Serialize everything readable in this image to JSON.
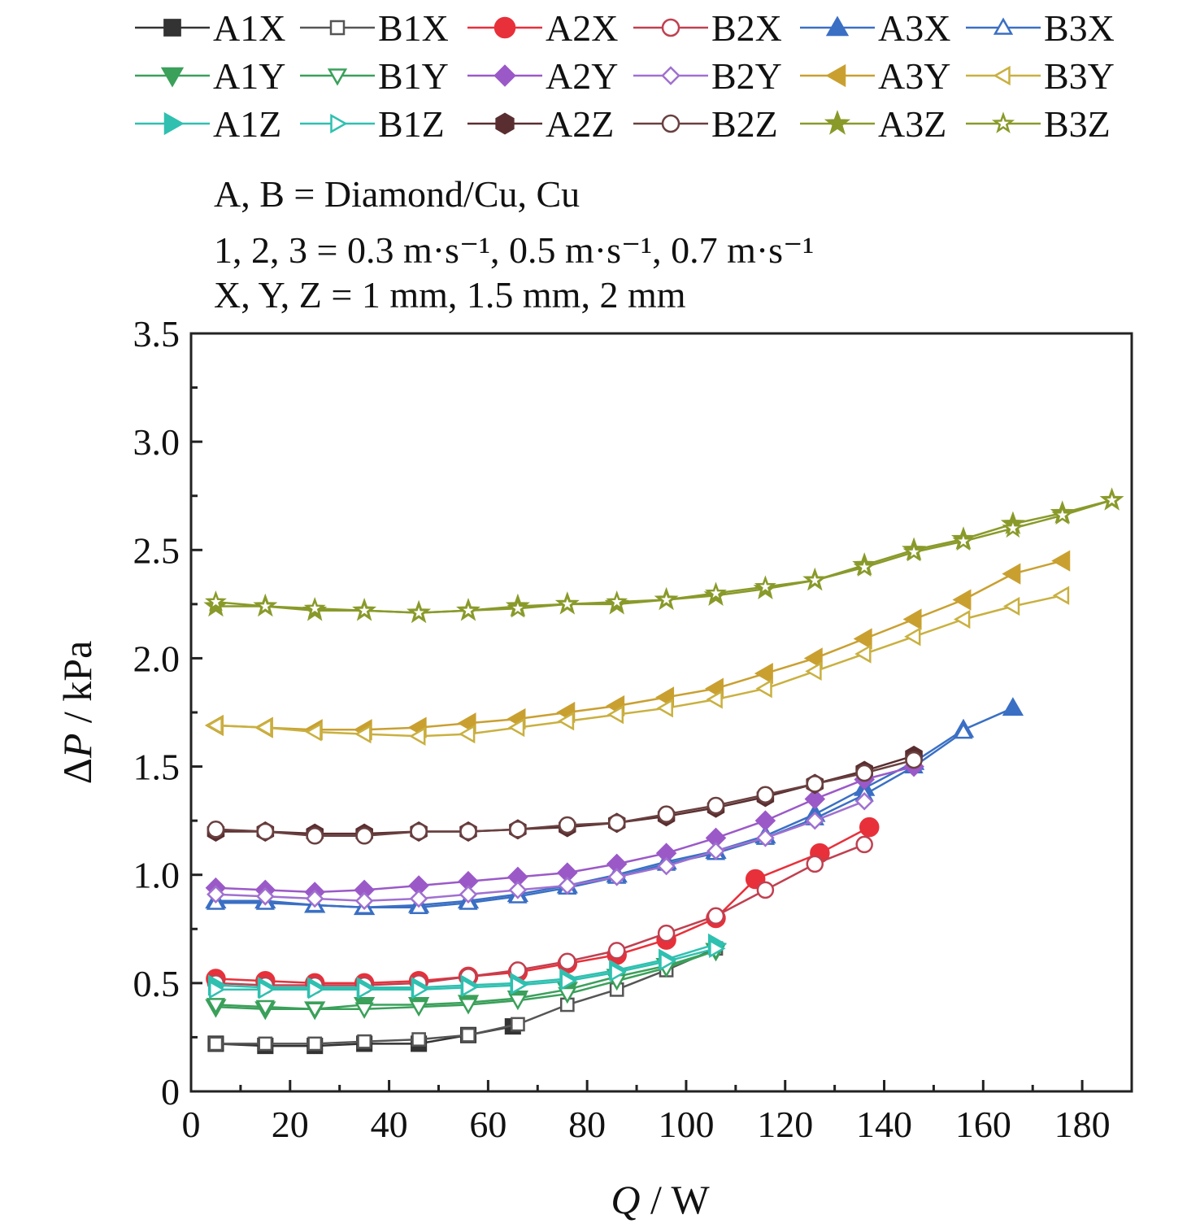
{
  "chart_data": {
    "type": "line",
    "xlabel": "Q / W",
    "ylabel": "ΔP / kPa",
    "xlim": [
      0,
      190
    ],
    "ylim": [
      0,
      3.5
    ],
    "xticks": [
      0,
      20,
      40,
      60,
      80,
      100,
      120,
      140,
      160,
      180
    ],
    "yticks": [
      "0",
      "0.5",
      "1.0",
      "1.5",
      "2.0",
      "2.5",
      "3.0",
      "3.5"
    ],
    "notes": [
      {
        "text": "A, B = Diamond/Cu, Cu"
      },
      {
        "text": "1, 2, 3 = 0.3 m·s⁻¹, 0.5 m·s⁻¹, 0.7 m·s⁻¹"
      },
      {
        "text": "X, Y, Z = 1 mm, 1.5 mm, 2 mm"
      }
    ],
    "legend_position": "top",
    "series": [
      {
        "name": "A1X",
        "color": "#333333",
        "marker": "square",
        "filled": true,
        "x": [
          5,
          15,
          25,
          35,
          46,
          56,
          65
        ],
        "y": [
          0.22,
          0.21,
          0.21,
          0.22,
          0.22,
          0.26,
          0.3
        ]
      },
      {
        "name": "B1X",
        "color": "#555555",
        "marker": "square",
        "filled": false,
        "x": [
          5,
          15,
          25,
          35,
          46,
          56,
          66,
          76,
          86,
          96,
          106
        ],
        "y": [
          0.22,
          0.22,
          0.22,
          0.23,
          0.24,
          0.26,
          0.31,
          0.4,
          0.47,
          0.56,
          0.66
        ]
      },
      {
        "name": "A2X",
        "color": "#e8303a",
        "marker": "circle",
        "filled": true,
        "x": [
          5,
          15,
          25,
          35,
          46,
          56,
          66,
          76,
          86,
          96,
          106,
          114,
          127,
          137
        ],
        "y": [
          0.52,
          0.51,
          0.5,
          0.5,
          0.51,
          0.53,
          0.55,
          0.59,
          0.63,
          0.7,
          0.8,
          0.98,
          1.1,
          1.22
        ]
      },
      {
        "name": "B2X",
        "color": "#c04050",
        "marker": "circle",
        "filled": false,
        "x": [
          5,
          15,
          25,
          35,
          46,
          56,
          66,
          76,
          86,
          96,
          106,
          116,
          126,
          136
        ],
        "y": [
          0.5,
          0.49,
          0.49,
          0.49,
          0.5,
          0.53,
          0.56,
          0.6,
          0.65,
          0.73,
          0.81,
          0.93,
          1.05,
          1.14
        ]
      },
      {
        "name": "A3X",
        "color": "#3a6fc4",
        "marker": "triangle-up",
        "filled": true,
        "x": [
          5,
          15,
          25,
          35,
          46,
          56,
          66,
          76,
          86,
          96,
          106,
          116,
          126,
          136,
          146,
          156,
          166
        ],
        "y": [
          0.88,
          0.88,
          0.86,
          0.85,
          0.86,
          0.88,
          0.91,
          0.95,
          1.0,
          1.06,
          1.11,
          1.18,
          1.28,
          1.4,
          1.52,
          1.67,
          1.77
        ]
      },
      {
        "name": "B3X",
        "color": "#3a6fc4",
        "marker": "triangle-up",
        "filled": false,
        "x": [
          5,
          15,
          25,
          35,
          46,
          56,
          66,
          76,
          86,
          96,
          106,
          116,
          126,
          136,
          146,
          156
        ],
        "y": [
          0.87,
          0.87,
          0.86,
          0.85,
          0.85,
          0.87,
          0.9,
          0.94,
          0.99,
          1.05,
          1.1,
          1.17,
          1.26,
          1.37,
          1.5,
          1.66
        ]
      },
      {
        "name": "A1Y",
        "color": "#3aa05a",
        "marker": "triangle-down",
        "filled": true,
        "x": [
          5,
          15,
          25,
          35,
          46,
          56,
          66,
          76,
          86,
          96,
          106
        ],
        "y": [
          0.39,
          0.38,
          0.38,
          0.4,
          0.4,
          0.41,
          0.43,
          0.47,
          0.53,
          0.58,
          0.65
        ]
      },
      {
        "name": "B1Y",
        "color": "#3aa05a",
        "marker": "triangle-down",
        "filled": false,
        "x": [
          5,
          15,
          25,
          35,
          46,
          56,
          66,
          76,
          86,
          96,
          106
        ],
        "y": [
          0.4,
          0.39,
          0.38,
          0.38,
          0.39,
          0.4,
          0.42,
          0.45,
          0.51,
          0.57,
          0.65
        ]
      },
      {
        "name": "A2Y",
        "color": "#9b59c8",
        "marker": "diamond",
        "filled": true,
        "x": [
          5,
          15,
          25,
          35,
          46,
          56,
          66,
          76,
          86,
          96,
          106,
          116,
          126,
          136,
          146
        ],
        "y": [
          0.94,
          0.93,
          0.92,
          0.93,
          0.95,
          0.97,
          0.99,
          1.01,
          1.05,
          1.1,
          1.17,
          1.25,
          1.35,
          1.44,
          1.5
        ]
      },
      {
        "name": "B2Y",
        "color": "#a070d0",
        "marker": "diamond",
        "filled": false,
        "x": [
          5,
          15,
          25,
          35,
          46,
          56,
          66,
          76,
          86,
          96,
          106,
          116,
          126,
          136
        ],
        "y": [
          0.91,
          0.9,
          0.89,
          0.88,
          0.89,
          0.91,
          0.93,
          0.95,
          0.99,
          1.04,
          1.11,
          1.17,
          1.25,
          1.34
        ]
      },
      {
        "name": "A3Y",
        "color": "#c9a030",
        "marker": "triangle-left",
        "filled": true,
        "x": [
          5,
          15,
          25,
          35,
          46,
          56,
          66,
          76,
          86,
          96,
          106,
          116,
          126,
          136,
          146,
          156,
          166,
          176
        ],
        "y": [
          1.69,
          1.68,
          1.67,
          1.67,
          1.68,
          1.7,
          1.72,
          1.75,
          1.78,
          1.82,
          1.86,
          1.93,
          2.0,
          2.09,
          2.18,
          2.27,
          2.39,
          2.45
        ]
      },
      {
        "name": "B3Y",
        "color": "#c9b040",
        "marker": "triangle-left",
        "filled": false,
        "x": [
          5,
          15,
          25,
          35,
          46,
          56,
          66,
          76,
          86,
          96,
          106,
          116,
          126,
          136,
          146,
          156,
          166,
          176
        ],
        "y": [
          1.69,
          1.68,
          1.66,
          1.65,
          1.64,
          1.65,
          1.68,
          1.71,
          1.74,
          1.77,
          1.81,
          1.86,
          1.94,
          2.02,
          2.1,
          2.18,
          2.24,
          2.29
        ]
      },
      {
        "name": "A1Z",
        "color": "#2fc0b0",
        "marker": "triangle-right",
        "filled": true,
        "x": [
          5,
          15,
          25,
          35,
          46,
          56,
          66,
          76,
          86,
          96,
          106
        ],
        "y": [
          0.49,
          0.48,
          0.48,
          0.48,
          0.48,
          0.49,
          0.5,
          0.52,
          0.56,
          0.61,
          0.68
        ]
      },
      {
        "name": "B1Z",
        "color": "#2fc0b0",
        "marker": "triangle-right",
        "filled": false,
        "x": [
          5,
          15,
          25,
          35,
          46,
          56,
          66,
          76,
          86,
          96,
          106
        ],
        "y": [
          0.47,
          0.47,
          0.47,
          0.47,
          0.47,
          0.48,
          0.49,
          0.51,
          0.55,
          0.6,
          0.66
        ]
      },
      {
        "name": "A2Z",
        "color": "#5a2e30",
        "marker": "hexagon",
        "filled": true,
        "x": [
          5,
          15,
          25,
          35,
          46,
          56,
          66,
          76,
          86,
          96,
          106,
          116,
          126,
          136,
          146
        ],
        "y": [
          1.2,
          1.2,
          1.19,
          1.19,
          1.2,
          1.2,
          1.21,
          1.22,
          1.24,
          1.27,
          1.31,
          1.36,
          1.42,
          1.48,
          1.55
        ]
      },
      {
        "name": "B2Z",
        "color": "#6a4040",
        "marker": "circle",
        "filled": false,
        "x": [
          5,
          15,
          25,
          35,
          46,
          56,
          66,
          76,
          86,
          96,
          106,
          116,
          126,
          136,
          146
        ],
        "y": [
          1.21,
          1.2,
          1.18,
          1.18,
          1.2,
          1.2,
          1.21,
          1.23,
          1.24,
          1.28,
          1.32,
          1.37,
          1.42,
          1.47,
          1.53
        ]
      },
      {
        "name": "A3Z",
        "color": "#8a9a2a",
        "marker": "star",
        "filled": true,
        "x": [
          5,
          15,
          25,
          35,
          46,
          56,
          66,
          76,
          86,
          96,
          106,
          116,
          126,
          136,
          146,
          156,
          166,
          176,
          186
        ],
        "y": [
          2.24,
          2.24,
          2.22,
          2.22,
          2.21,
          2.22,
          2.24,
          2.25,
          2.25,
          2.27,
          2.29,
          2.32,
          2.36,
          2.43,
          2.5,
          2.55,
          2.62,
          2.67,
          2.73
        ]
      },
      {
        "name": "B3Z",
        "color": "#8a9a2a",
        "marker": "star",
        "filled": false,
        "x": [
          5,
          15,
          25,
          35,
          46,
          56,
          66,
          76,
          86,
          96,
          106,
          116,
          126,
          136,
          146,
          156,
          166,
          176,
          186
        ],
        "y": [
          2.26,
          2.24,
          2.23,
          2.22,
          2.21,
          2.22,
          2.23,
          2.25,
          2.26,
          2.27,
          2.3,
          2.33,
          2.36,
          2.42,
          2.49,
          2.54,
          2.6,
          2.66,
          2.73
        ]
      }
    ]
  }
}
